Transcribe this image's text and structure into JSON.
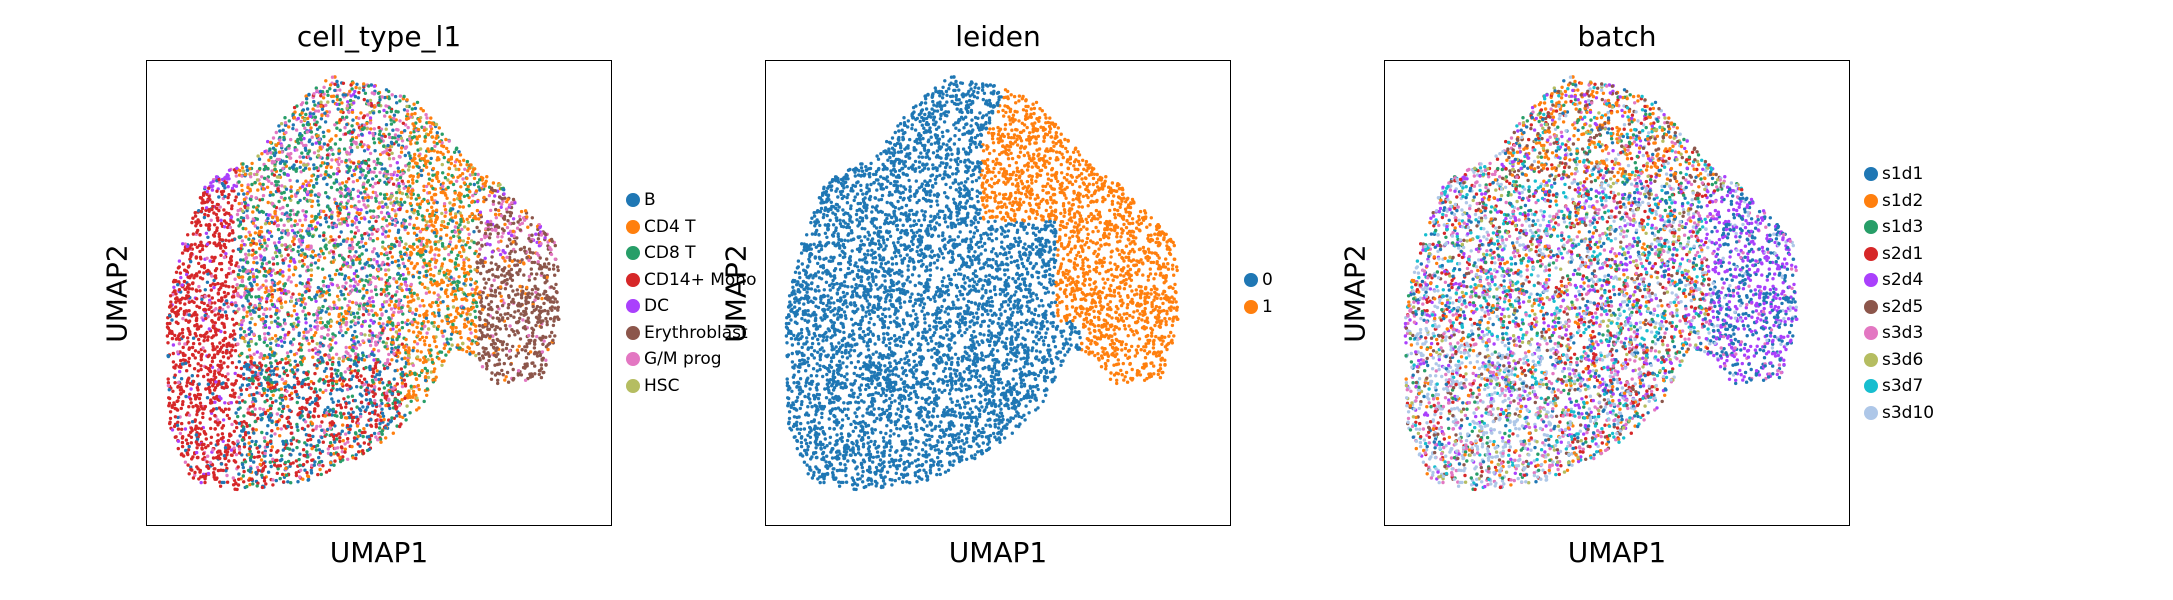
{
  "chart_data": [
    {
      "type": "scatter",
      "title": "cell_type_l1",
      "xlabel": "UMAP1",
      "ylabel": "UMAP2",
      "axis_ticks": false,
      "grid": false,
      "legend_position": "right",
      "categories": [
        {
          "name": "B",
          "color": "#1f77b4"
        },
        {
          "name": "CD4 T",
          "color": "#ff7f0e"
        },
        {
          "name": "CD8 T",
          "color": "#279e68"
        },
        {
          "name": "CD14+ Mono",
          "color": "#d62728"
        },
        {
          "name": "DC",
          "color": "#aa40fc"
        },
        {
          "name": "Erythroblast",
          "color": "#8c564b"
        },
        {
          "name": "G/M prog",
          "color": "#e377c2"
        },
        {
          "name": "HSC",
          "color": "#b5bd61"
        }
      ]
    },
    {
      "type": "scatter",
      "title": "leiden",
      "xlabel": "UMAP1",
      "ylabel": "UMAP2",
      "axis_ticks": false,
      "grid": false,
      "legend_position": "right",
      "categories": [
        {
          "name": "0",
          "color": "#1f77b4"
        },
        {
          "name": "1",
          "color": "#ff7f0e"
        }
      ]
    },
    {
      "type": "scatter",
      "title": "batch",
      "xlabel": "UMAP1",
      "ylabel": "UMAP2",
      "axis_ticks": false,
      "grid": false,
      "legend_position": "right",
      "categories": [
        {
          "name": "s1d1",
          "color": "#1f77b4"
        },
        {
          "name": "s1d2",
          "color": "#ff7f0e"
        },
        {
          "name": "s1d3",
          "color": "#279e68"
        },
        {
          "name": "s2d1",
          "color": "#d62728"
        },
        {
          "name": "s2d4",
          "color": "#aa40fc"
        },
        {
          "name": "s2d5",
          "color": "#8c564b"
        },
        {
          "name": "s3d3",
          "color": "#e377c2"
        },
        {
          "name": "s3d6",
          "color": "#b5bd61"
        },
        {
          "name": "s3d7",
          "color": "#17becf"
        },
        {
          "name": "s3d10",
          "color": "#aec7e8"
        }
      ]
    }
  ]
}
